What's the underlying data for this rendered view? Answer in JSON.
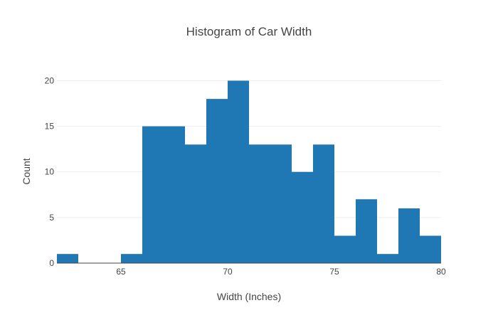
{
  "chart_data": {
    "type": "bar",
    "title": "Histogram of Car Width",
    "xlabel": "Width (Inches)",
    "ylabel": "Count",
    "bins": [
      {
        "x0": 62,
        "x1": 63,
        "count": 1
      },
      {
        "x0": 63,
        "x1": 64,
        "count": 0
      },
      {
        "x0": 64,
        "x1": 65,
        "count": 0
      },
      {
        "x0": 65,
        "x1": 66,
        "count": 1
      },
      {
        "x0": 66,
        "x1": 67,
        "count": 15
      },
      {
        "x0": 67,
        "x1": 68,
        "count": 15
      },
      {
        "x0": 68,
        "x1": 69,
        "count": 13
      },
      {
        "x0": 69,
        "x1": 70,
        "count": 18
      },
      {
        "x0": 70,
        "x1": 71,
        "count": 20
      },
      {
        "x0": 71,
        "x1": 72,
        "count": 13
      },
      {
        "x0": 72,
        "x1": 73,
        "count": 13
      },
      {
        "x0": 73,
        "x1": 74,
        "count": 10
      },
      {
        "x0": 74,
        "x1": 75,
        "count": 13
      },
      {
        "x0": 75,
        "x1": 76,
        "count": 3
      },
      {
        "x0": 76,
        "x1": 77,
        "count": 7
      },
      {
        "x0": 77,
        "x1": 78,
        "count": 1
      },
      {
        "x0": 78,
        "x1": 79,
        "count": 6
      },
      {
        "x0": 79,
        "x1": 80,
        "count": 3
      }
    ],
    "xlim": [
      62,
      80
    ],
    "ylim": [
      0,
      21.05
    ],
    "xticks": [
      65,
      70,
      75,
      80
    ],
    "yticks": [
      0,
      5,
      10,
      15,
      20
    ],
    "grid": true,
    "bar_color": "#1f77b4"
  }
}
